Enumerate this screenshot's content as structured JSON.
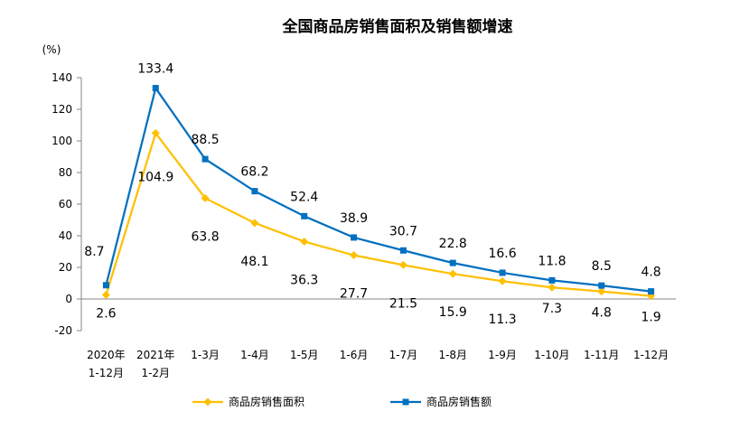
{
  "chart_data": {
    "type": "line",
    "title": "全国商品房销售面积及销售额增速",
    "ylabel": "(%)",
    "xlabel": "",
    "ylim": [
      -20,
      140
    ],
    "yticks": [
      -20,
      0,
      20,
      40,
      60,
      80,
      100,
      120,
      140
    ],
    "grid": false,
    "legend_position": "bottom",
    "categories": [
      [
        "2020年",
        "1-12月"
      ],
      [
        "2021年",
        "1-2月"
      ],
      [
        "1-3月"
      ],
      [
        "1-4月"
      ],
      [
        "1-5月"
      ],
      [
        "1-6月"
      ],
      [
        "1-7月"
      ],
      [
        "1-8月"
      ],
      [
        "1-9月"
      ],
      [
        "1-10月"
      ],
      [
        "1-11月"
      ],
      [
        "1-12月"
      ]
    ],
    "series": [
      {
        "name": "商品房销售面积",
        "color": "#FFC000",
        "marker": "diamond",
        "values": [
          2.6,
          104.9,
          63.8,
          48.1,
          36.3,
          27.7,
          21.5,
          15.9,
          11.3,
          7.3,
          4.8,
          1.9
        ],
        "labels": [
          "2.6",
          "104.9",
          "63.8",
          "48.1",
          "36.3",
          "27.7",
          "21.5",
          "15.9",
          "11.3",
          "7.3",
          "4.8",
          "1.9"
        ]
      },
      {
        "name": "商品房销售额",
        "color": "#0070C0",
        "marker": "square",
        "values": [
          8.7,
          133.4,
          88.5,
          68.2,
          52.4,
          38.9,
          30.7,
          22.8,
          16.6,
          11.8,
          8.5,
          4.8
        ],
        "labels": [
          "8.7",
          "133.4",
          "88.5",
          "68.2",
          "52.4",
          "38.9",
          "30.7",
          "22.8",
          "16.6",
          "11.8",
          "8.5",
          "4.8"
        ]
      }
    ]
  }
}
